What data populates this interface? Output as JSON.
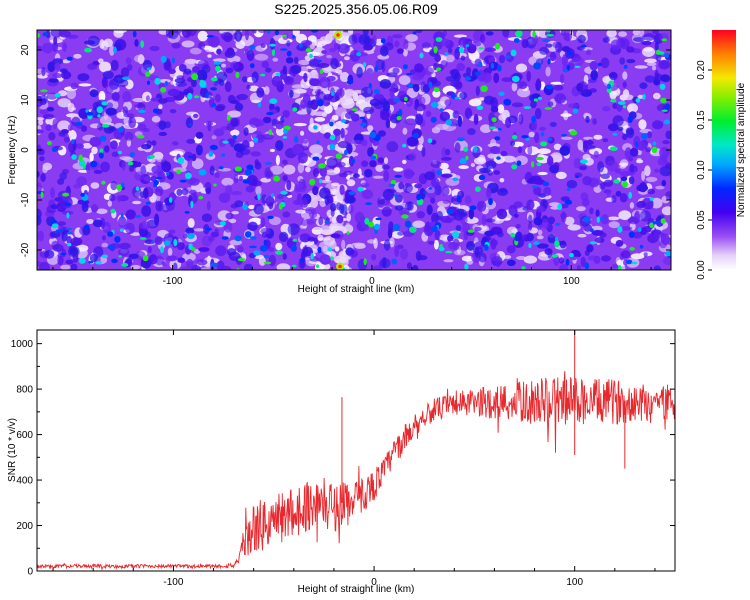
{
  "figure_title": "S225.2025.356.05.06.R09",
  "chart_data": [
    {
      "type": "heatmap",
      "title": "S225.2025.356.05.06.R09",
      "xlabel": "Height of straight line (km)",
      "ylabel": "Frequency (Hz)",
      "xlim": [
        -168,
        150
      ],
      "ylim": [
        -24,
        24
      ],
      "xticks": [
        -100,
        0,
        100
      ],
      "xtick_labels": [
        "-100",
        "0",
        "100"
      ],
      "yticks": [
        -20,
        -10,
        0,
        10,
        20
      ],
      "ytick_labels": [
        "-20",
        "-10",
        "0",
        "10",
        "20"
      ],
      "colorbar": {
        "label": "Normalized spectral amplitude",
        "range": [
          0,
          0.24
        ],
        "ticks": [
          0,
          0.05,
          0.1,
          0.15,
          0.2
        ],
        "tick_labels": [
          "0.00",
          "0.05",
          "0.10",
          "0.15",
          "0.20"
        ],
        "colormap": "rainbow (white-lavender to red)"
      },
      "description_values": {
        "background_amplitude_range": [
          0.02,
          0.06
        ],
        "blob_amplitude_range": [
          0.06,
          0.2
        ],
        "bright_vertical_band_km": [
          -36,
          -10
        ]
      }
    },
    {
      "type": "line",
      "title": "",
      "xlabel": "Height of straight line (km)",
      "ylabel": "SNR (10 * v/v)",
      "xlim": [
        -168,
        150
      ],
      "ylim": [
        0,
        1060
      ],
      "xticks": [
        -100,
        0,
        100
      ],
      "xtick_labels": [
        "-100",
        "0",
        "100"
      ],
      "yticks": [
        0,
        200,
        400,
        600,
        800,
        1000
      ],
      "ytick_labels": [
        "0",
        "200",
        "400",
        "600",
        "800",
        "1000"
      ],
      "color": "#e8282d",
      "series": [
        {
          "name": "SNR",
          "x": [
            -168,
            -150,
            -130,
            -110,
            -90,
            -75,
            -68,
            -64,
            -60,
            -55,
            -50,
            -45,
            -40,
            -35,
            -30,
            -25,
            -20,
            -16,
            -14,
            -12,
            -10,
            -5,
            0,
            5,
            10,
            15,
            20,
            25,
            30,
            40,
            50,
            60,
            70,
            80,
            90,
            100,
            110,
            120,
            130,
            140,
            150
          ],
          "y": [
            20,
            22,
            20,
            22,
            20,
            22,
            30,
            120,
            190,
            200,
            220,
            240,
            260,
            285,
            295,
            300,
            280,
            300,
            320,
            280,
            300,
            340,
            380,
            440,
            520,
            580,
            640,
            680,
            710,
            730,
            740,
            745,
            740,
            745,
            750,
            750,
            745,
            745,
            745,
            745,
            740
          ],
          "noise_amplitude": [
            8,
            8,
            8,
            8,
            8,
            8,
            20,
            80,
            110,
            120,
            120,
            120,
            115,
            115,
            110,
            110,
            110,
            110,
            110,
            100,
            90,
            80,
            70,
            60,
            60,
            60,
            50,
            50,
            50,
            60,
            60,
            80,
            90,
            100,
            110,
            110,
            100,
            100,
            90,
            90,
            90
          ]
        }
      ],
      "spikes": [
        {
          "x": -16,
          "y": 765
        },
        {
          "x": 100,
          "y": 1060
        },
        {
          "x": 100,
          "y": 510
        },
        {
          "x": 125,
          "y": 450
        }
      ]
    }
  ]
}
